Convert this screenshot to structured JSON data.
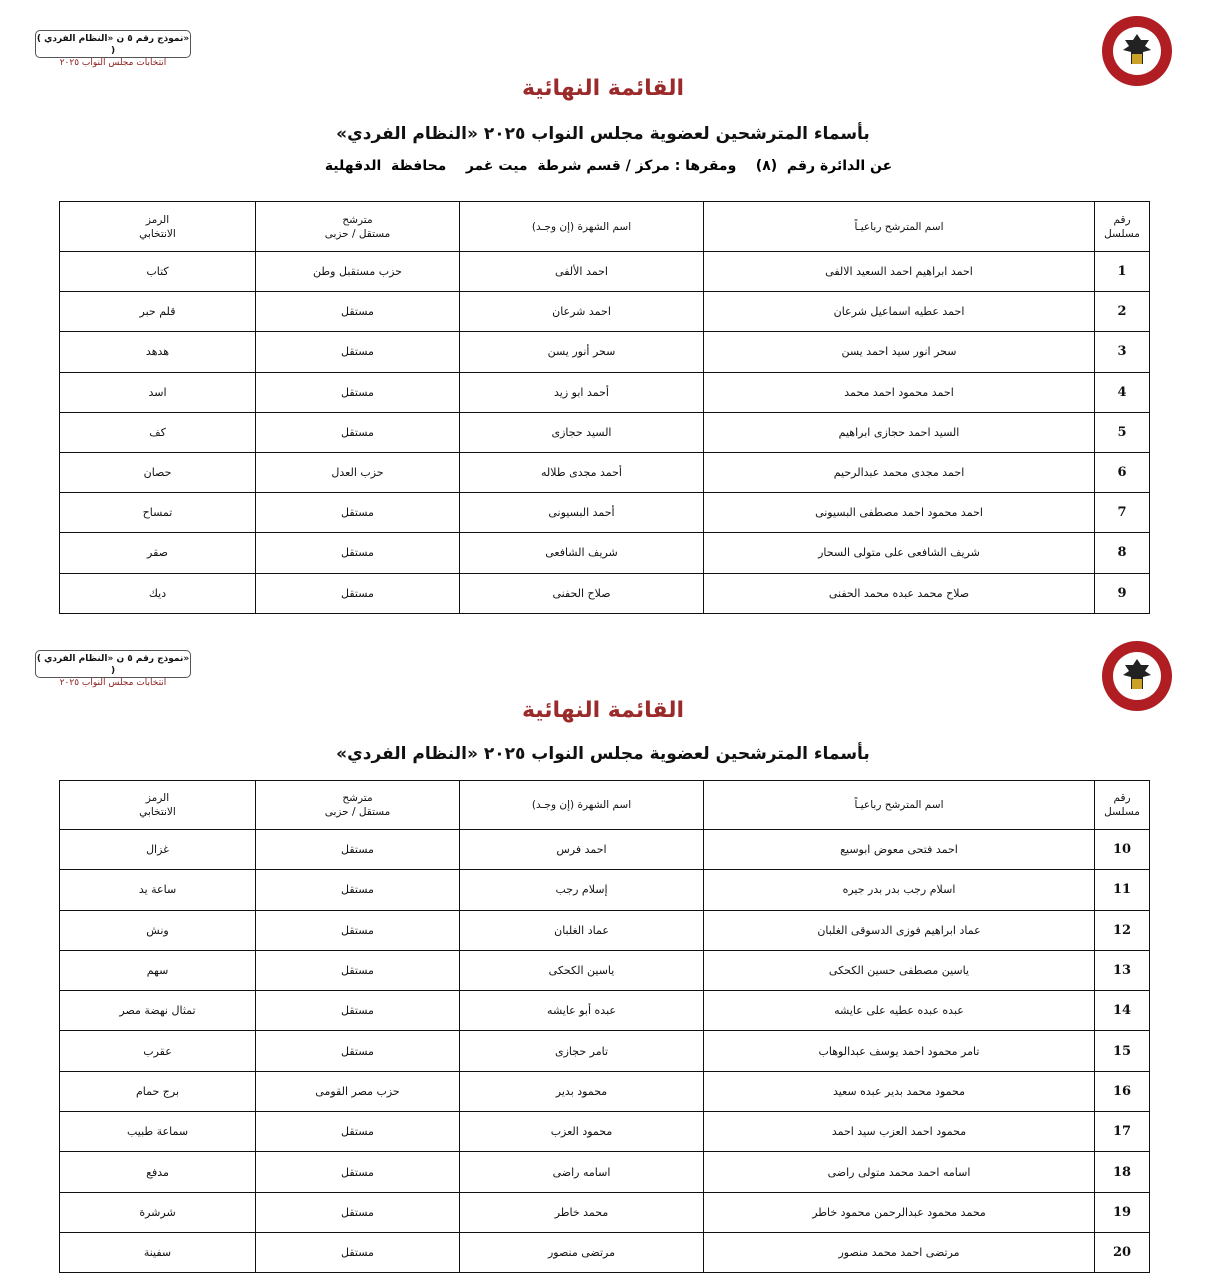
{
  "form_label": {
    "line1": "( نموذج رقم ٥ ن «النظام الفردي» )",
    "line2": "انتخابات مجلس النواب ٢٠٢٥"
  },
  "logo_text": "الهيئة الوطنية للانتخابات - National Election Authority Egypt",
  "title": "القائمة النهائية",
  "subtitle": "بأسماء المترشحين لعضوية مجلس النواب ٢٠٢٥ «النظام الفردي»",
  "district": "عن الدائرة رقم  (٨)    ومقرها : مركز / قسم شرطة  ميت غمر    محافظة  الدقهلية",
  "headers": {
    "serial": "رقم\nمسلسل",
    "name": "اسم المترشح رباعيـاً",
    "nickname": "اسم الشهرة (إن وجـد)",
    "type": "مترشح\nمستقل / حزبى",
    "symbol": "الرمز\nالانتخابي"
  },
  "table1": [
    [
      "1",
      "احمد ابراهيم احمد السعيد الالفى",
      "احمد الألفى",
      "حزب مستقبل وطن",
      "كتاب"
    ],
    [
      "2",
      "احمد عطيه اسماعيل شرعان",
      "احمد شرعان",
      "مستقل",
      "قلم حبر"
    ],
    [
      "3",
      "سحر انور سيد احمد يسن",
      "سحر أنور يسن",
      "مستقل",
      "هدهد"
    ],
    [
      "4",
      "احمد محمود احمد محمد",
      "أحمد ابو زيد",
      "مستقل",
      "اسد"
    ],
    [
      "5",
      "السيد احمد حجازى ابراهيم",
      "السيد حجازى",
      "مستقل",
      "كف"
    ],
    [
      "6",
      "احمد مجدى محمد عبدالرحيم",
      "أحمد مجدى طلاله",
      "حزب العدل",
      "حصان"
    ],
    [
      "7",
      "احمد محمود احمد مصطفى البسيونى",
      "أحمد البسيونى",
      "مستقل",
      "تمساح"
    ],
    [
      "8",
      "شريف الشافعى على متولى السحار",
      "شريف الشافعى",
      "مستقل",
      "صقر"
    ],
    [
      "9",
      "صلاح محمد عبده محمد الحفنى",
      "صلاح الحفنى",
      "مستقل",
      "ديك"
    ]
  ],
  "table2": [
    [
      "10",
      "احمد فتحى معوض ابوسيع",
      "احمد فرس",
      "مستقل",
      "غزال"
    ],
    [
      "11",
      "اسلام رجب بدر بدر جيره",
      "إسلام رجب",
      "مستقل",
      "ساعة يد"
    ],
    [
      "12",
      "عماد ابراهيم فوزى الدسوقى الغلبان",
      "عماد الغلبان",
      "مستقل",
      "ونش"
    ],
    [
      "13",
      "ياسين مصطفى حسين الكحكى",
      "ياسين الكحكى",
      "مستقل",
      "سهم"
    ],
    [
      "14",
      "عبده عبده عطيه على عايشه",
      "عبده أبو عايشه",
      "مستقل",
      "تمثال نهضة مصر"
    ],
    [
      "15",
      "تامر محمود احمد يوسف عبدالوهاب",
      "تامر حجازى",
      "مستقل",
      "عقرب"
    ],
    [
      "16",
      "محمود محمد بدير عبده سعيد",
      "محمود بدير",
      "حزب مصر القومى",
      "برج حمام"
    ],
    [
      "17",
      "محمود احمد العزب سيد احمد",
      "محمود العزب",
      "مستقل",
      "سماعة طبيب"
    ],
    [
      "18",
      "اسامه احمد محمد متولى راضى",
      "اسامه راضى",
      "مستقل",
      "مدفع"
    ],
    [
      "19",
      "محمد محمود عبدالرحمن محمود خاطر",
      "محمد خاطر",
      "مستقل",
      "شرشرة"
    ],
    [
      "20",
      "مرتضى احمد محمد منصور",
      "مرتضى منصور",
      "مستقل",
      "سفينة"
    ]
  ]
}
